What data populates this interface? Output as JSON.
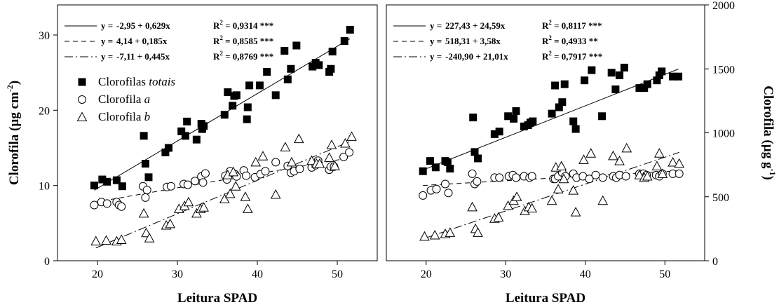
{
  "chart_data": [
    {
      "type": "scatter",
      "xlabel": "Leitura SPAD",
      "ylabel": "Clorofila (µg cm",
      "ylabel_exp": "-2",
      "ylabel_close": ")",
      "xlim": [
        15,
        55
      ],
      "ylim": [
        0,
        34
      ],
      "xticks": [
        20,
        30,
        40,
        50
      ],
      "yticks": [
        0,
        10,
        20,
        30
      ],
      "equations": [
        {
          "style": "solid",
          "y": "y =",
          "eq": "-2,95 + 0,629x",
          "r2_label": "R",
          "r2_exp": "2",
          "r2_value": " = 0,9314 ***"
        },
        {
          "style": "dashed",
          "y": "y =",
          "eq": "4,14 + 0,185x",
          "r2_label": "R",
          "r2_exp": "2",
          "r2_value": " = 0,8585 ***"
        },
        {
          "style": "dashdot",
          "y": "y =",
          "eq": "-7,11 + 0,445x",
          "r2_label": "R",
          "r2_exp": "2",
          "r2_value": " = 0,8769 ***"
        }
      ],
      "series": [
        {
          "name": "Clorofilas ",
          "name_italic": "totais",
          "marker": "filled-square",
          "fit": {
            "intercept": -2.95,
            "slope": 0.629,
            "style": "solid"
          },
          "x": [
            19.6,
            20.6,
            21.2,
            22.4,
            23.1,
            25.8,
            26.0,
            26.4,
            28.5,
            28.9,
            30.5,
            31.0,
            31.2,
            32.4,
            33.0,
            33.1,
            33.3,
            35.9,
            36.3,
            36.9,
            37.1,
            37.4,
            38.7,
            38.8,
            39.0,
            40.3,
            41.2,
            42.3,
            43.4,
            43.8,
            44.2,
            44.9,
            46.9,
            47.3,
            47.7,
            49.0,
            49.2,
            49.4,
            50.9,
            51.6
          ],
          "y": [
            10.0,
            10.8,
            10.5,
            10.7,
            9.9,
            16.6,
            12.9,
            11.1,
            14.4,
            15.0,
            17.2,
            16.6,
            18.5,
            16.1,
            18.2,
            17.5,
            17.9,
            19.4,
            22.4,
            20.6,
            21.9,
            22.0,
            18.8,
            20.4,
            23.3,
            23.3,
            25.1,
            22.0,
            27.9,
            24.1,
            25.5,
            28.6,
            25.8,
            26.3,
            26.0,
            25.1,
            25.5,
            27.8,
            29.2,
            30.7
          ]
        },
        {
          "name": "Clorofila ",
          "name_italic": "a",
          "marker": "open-circle",
          "fit": {
            "intercept": 4.14,
            "slope": 0.185,
            "style": "dashed"
          },
          "x": [
            19.6,
            20.5,
            21.2,
            22.4,
            22.7,
            23.0,
            25.7,
            26.0,
            26.2,
            28.7,
            29.2,
            30.8,
            31.3,
            32.2,
            33.0,
            33.2,
            33.5,
            36.0,
            36.2,
            36.6,
            37.2,
            37.4,
            38.3,
            38.6,
            39.7,
            40.4,
            41.0,
            42.3,
            43.8,
            44.2,
            44.6,
            45.3,
            46.8,
            47.3,
            47.6,
            49.0,
            49.2,
            49.6,
            50.8,
            51.5
          ],
          "y": [
            7.4,
            7.8,
            7.6,
            7.8,
            7.4,
            7.2,
            9.9,
            8.4,
            9.4,
            9.8,
            9.9,
            10.2,
            10.1,
            10.6,
            11.2,
            10.4,
            11.6,
            11.3,
            10.8,
            11.9,
            11.5,
            11.2,
            12.0,
            11.3,
            11.1,
            11.5,
            11.9,
            13.1,
            12.6,
            11.7,
            11.9,
            12.2,
            12.4,
            12.7,
            13.3,
            12.1,
            12.5,
            12.5,
            13.8,
            14.4
          ]
        },
        {
          "name": "Clorofila ",
          "name_italic": "b",
          "marker": "open-triangle",
          "fit": {
            "intercept": -7.11,
            "slope": 0.445,
            "style": "dashdot"
          },
          "x": [
            19.8,
            21.1,
            22.4,
            23.0,
            25.8,
            26.1,
            26.5,
            28.6,
            29.1,
            30.2,
            30.9,
            31.4,
            32.4,
            32.9,
            33.3,
            35.9,
            36.3,
            36.6,
            37.0,
            37.3,
            38.5,
            38.8,
            39.8,
            40.7,
            42.3,
            43.5,
            44.3,
            45.2,
            46.8,
            47.4,
            47.8,
            49.0,
            49.3,
            49.7,
            51.0,
            51.8
          ],
          "y": [
            2.6,
            2.7,
            2.6,
            2.8,
            6.3,
            3.7,
            3.0,
            4.7,
            4.9,
            6.9,
            7.3,
            7.8,
            6.3,
            6.9,
            7.1,
            8.2,
            11.4,
            8.9,
            11.8,
            9.9,
            8.5,
            6.9,
            13.1,
            13.9,
            8.8,
            15.1,
            13.1,
            16.2,
            13.3,
            12.9,
            12.9,
            13.7,
            15.4,
            12.6,
            15.6,
            16.5
          ]
        }
      ]
    },
    {
      "type": "scatter",
      "xlabel": "Leitura SPAD",
      "ylabel": "Clorofila (µg g",
      "ylabel_exp": "-1",
      "ylabel_close": ")",
      "xlim": [
        15,
        55
      ],
      "ylim": [
        0,
        2000
      ],
      "xticks": [
        20,
        30,
        40,
        50
      ],
      "yticks": [
        0,
        500,
        1000,
        1500,
        2000
      ],
      "equations": [
        {
          "style": "solid",
          "y": "y =",
          "eq": "227,43 + 24,59x",
          "r2_label": "R",
          "r2_exp": "2",
          "r2_value": " = 0,8117 ***"
        },
        {
          "style": "dashed",
          "y": "y =",
          "eq": "518,31 +   3,58x",
          "r2_label": "R",
          "r2_exp": "2",
          "r2_value": " = 0,4933 **"
        },
        {
          "style": "dashdot",
          "y": "y =",
          "eq": "-240,90 + 21,01x",
          "r2_label": "R",
          "r2_exp": "2",
          "r2_value": " = 0,7917 ***"
        }
      ],
      "series": [
        {
          "name": "Clorofilas totais",
          "marker": "filled-square",
          "fit": {
            "intercept": 227.43,
            "slope": 24.59,
            "style": "solid"
          },
          "x": [
            19.6,
            20.5,
            21.2,
            22.4,
            22.7,
            23.0,
            25.9,
            26.1,
            26.5,
            28.6,
            29.2,
            30.3,
            31.0,
            31.3,
            32.3,
            32.8,
            33.1,
            33.4,
            35.8,
            36.2,
            36.7,
            37.1,
            37.4,
            38.5,
            38.8,
            39.9,
            40.8,
            42.1,
            43.3,
            43.8,
            44.3,
            44.9,
            46.8,
            47.4,
            47.8,
            49.0,
            49.3,
            49.6,
            51.0,
            51.7
          ],
          "y": [
            700,
            780,
            730,
            780,
            770,
            720,
            1120,
            850,
            800,
            990,
            1010,
            1130,
            1110,
            1170,
            1050,
            1060,
            1080,
            1090,
            1150,
            1370,
            1200,
            1240,
            1380,
            1090,
            1030,
            1410,
            1490,
            1130,
            1470,
            1340,
            1450,
            1510,
            1350,
            1350,
            1380,
            1410,
            1450,
            1480,
            1440,
            1440
          ]
        },
        {
          "name": "Clorofila a",
          "marker": "open-circle",
          "fit": {
            "intercept": 518.31,
            "slope": 3.58,
            "style": "dashed"
          },
          "x": [
            19.6,
            20.6,
            21.3,
            22.4,
            22.8,
            25.8,
            26.1,
            26.4,
            28.6,
            29.2,
            30.4,
            30.9,
            31.3,
            32.3,
            33.0,
            33.3,
            36.0,
            36.2,
            36.6,
            37.1,
            37.5,
            38.5,
            38.9,
            39.7,
            40.5,
            41.3,
            42.2,
            43.5,
            43.9,
            44.3,
            45.1,
            46.8,
            47.3,
            47.7,
            48.9,
            49.3,
            49.7,
            51.0,
            51.8
          ],
          "y": [
            510,
            550,
            560,
            600,
            530,
            680,
            600,
            620,
            650,
            650,
            660,
            670,
            650,
            660,
            650,
            660,
            640,
            640,
            660,
            690,
            660,
            680,
            650,
            660,
            640,
            670,
            650,
            660,
            650,
            670,
            660,
            680,
            680,
            670,
            670,
            660,
            680,
            680,
            680
          ]
        },
        {
          "name": "Clorofila b",
          "marker": "open-triangle",
          "fit": {
            "intercept": -240.9,
            "slope": 21.01,
            "style": "dashdot"
          },
          "x": [
            19.8,
            21.1,
            22.4,
            23.0,
            25.8,
            26.2,
            26.5,
            28.6,
            29.1,
            30.3,
            31.0,
            31.4,
            32.4,
            32.9,
            33.3,
            35.8,
            36.3,
            36.6,
            37.0,
            37.3,
            38.5,
            38.8,
            39.8,
            40.7,
            42.2,
            43.5,
            44.3,
            45.2,
            46.8,
            47.4,
            47.8,
            49.0,
            49.3,
            49.7,
            51.0,
            51.8
          ],
          "y": [
            190,
            200,
            210,
            220,
            420,
            250,
            220,
            330,
            340,
            430,
            470,
            500,
            390,
            420,
            410,
            470,
            730,
            560,
            740,
            640,
            550,
            380,
            790,
            840,
            470,
            820,
            780,
            880,
            670,
            650,
            660,
            740,
            840,
            680,
            770,
            760
          ]
        }
      ]
    }
  ]
}
